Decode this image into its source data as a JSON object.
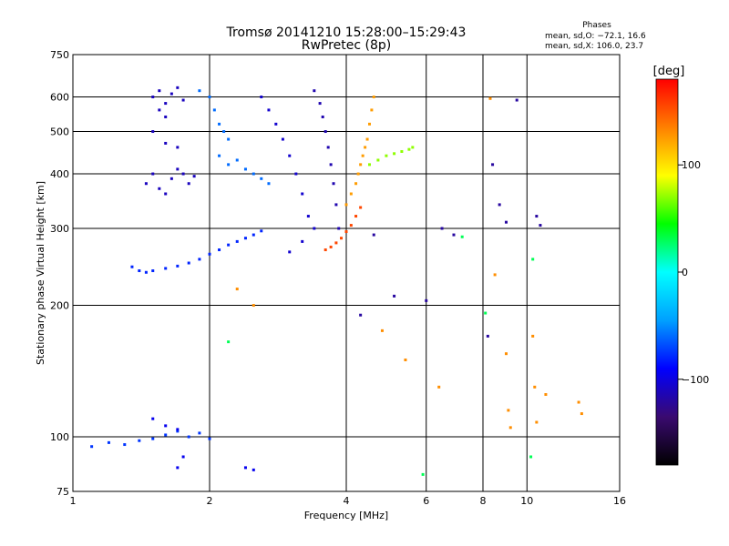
{
  "chart_data": {
    "type": "scatter",
    "title": "Tromsø 20141210 15:28:00–15:29:43",
    "subtitle": "RwPretec (8p)",
    "xlabel": "Frequency [MHz]",
    "ylabel": "Stationary phase Virtual Height [km]",
    "x_scale": "log2",
    "y_scale": "log",
    "xlim": [
      1,
      16
    ],
    "ylim": [
      75,
      750
    ],
    "x_ticks": [
      "1",
      "2",
      "4",
      "6",
      "8",
      "10",
      "16"
    ],
    "y_ticks": [
      "75",
      "100",
      "200",
      "300",
      "400",
      "500",
      "600",
      "750"
    ],
    "grid": true,
    "stats": {
      "title": "Phases",
      "line1": "mean, sd,O: −72.1, 16.6",
      "line2": "mean, sd,X: 106.0, 23.7"
    },
    "colorbar": {
      "label": "[deg]",
      "range": [
        -180,
        180
      ],
      "ticks": [
        "100",
        "0",
        "−100"
      ],
      "colors": [
        "#000000",
        "#3a0a70",
        "#0000ff",
        "#00a0ff",
        "#00ffff",
        "#00ff00",
        "#ffff00",
        "#ff8000",
        "#ff0000"
      ]
    },
    "series": [
      {
        "points": [
          [
            1.5,
            600
          ],
          [
            1.55,
            620
          ],
          [
            1.6,
            580
          ],
          [
            1.65,
            610
          ],
          [
            1.7,
            630
          ],
          [
            1.75,
            590
          ],
          [
            1.55,
            560
          ],
          [
            1.6,
            540
          ],
          [
            1.5,
            500
          ],
          [
            1.6,
            470
          ],
          [
            1.7,
            460
          ],
          [
            1.45,
            380
          ],
          [
            1.5,
            400
          ],
          [
            1.55,
            370
          ],
          [
            1.6,
            360
          ],
          [
            1.65,
            390
          ],
          [
            1.7,
            410
          ],
          [
            1.75,
            400
          ],
          [
            1.8,
            380
          ],
          [
            1.85,
            395
          ]
        ],
        "phase": -110
      },
      {
        "points": [
          [
            1.35,
            245
          ],
          [
            1.4,
            240
          ],
          [
            1.45,
            238
          ],
          [
            1.5,
            240
          ],
          [
            1.6,
            243
          ],
          [
            1.7,
            246
          ],
          [
            1.8,
            250
          ],
          [
            1.9,
            255
          ],
          [
            2.0,
            262
          ],
          [
            2.1,
            268
          ],
          [
            2.2,
            275
          ],
          [
            2.3,
            280
          ],
          [
            2.4,
            285
          ],
          [
            2.5,
            290
          ],
          [
            2.6,
            296
          ]
        ],
        "phase": -80
      },
      {
        "points": [
          [
            1.9,
            620
          ],
          [
            2.0,
            600
          ],
          [
            2.05,
            560
          ],
          [
            2.1,
            520
          ],
          [
            2.15,
            500
          ],
          [
            2.2,
            480
          ],
          [
            2.1,
            440
          ],
          [
            2.2,
            420
          ],
          [
            2.3,
            430
          ],
          [
            2.4,
            410
          ],
          [
            2.5,
            400
          ],
          [
            2.6,
            390
          ],
          [
            2.7,
            380
          ]
        ],
        "phase": -60
      },
      {
        "points": [
          [
            2.6,
            600
          ],
          [
            2.7,
            560
          ],
          [
            2.8,
            520
          ],
          [
            2.9,
            480
          ],
          [
            3.0,
            440
          ],
          [
            3.1,
            400
          ],
          [
            3.2,
            360
          ],
          [
            3.3,
            320
          ],
          [
            3.4,
            300
          ],
          [
            3.2,
            280
          ],
          [
            3.0,
            265
          ]
        ],
        "phase": -105
      },
      {
        "points": [
          [
            3.4,
            620
          ],
          [
            3.5,
            580
          ],
          [
            3.55,
            540
          ],
          [
            3.6,
            500
          ],
          [
            3.65,
            460
          ],
          [
            3.7,
            420
          ],
          [
            3.75,
            380
          ],
          [
            3.8,
            340
          ],
          [
            3.85,
            300
          ]
        ],
        "phase": -115
      },
      {
        "points": [
          [
            3.6,
            268
          ],
          [
            3.7,
            272
          ],
          [
            3.8,
            278
          ],
          [
            3.9,
            285
          ],
          [
            4.0,
            295
          ],
          [
            4.1,
            305
          ],
          [
            4.2,
            320
          ],
          [
            4.3,
            335
          ]
        ],
        "phase": 155
      },
      {
        "points": [
          [
            4.0,
            340
          ],
          [
            4.1,
            360
          ],
          [
            4.2,
            380
          ],
          [
            4.25,
            400
          ],
          [
            4.3,
            420
          ],
          [
            4.35,
            440
          ],
          [
            4.4,
            460
          ],
          [
            4.45,
            480
          ],
          [
            4.5,
            520
          ],
          [
            4.55,
            560
          ],
          [
            4.6,
            600
          ]
        ],
        "phase": 125
      },
      {
        "points": [
          [
            4.5,
            420
          ],
          [
            4.7,
            430
          ],
          [
            4.9,
            440
          ],
          [
            5.1,
            445
          ],
          [
            5.3,
            450
          ],
          [
            5.5,
            455
          ],
          [
            5.6,
            460
          ]
        ],
        "phase": 70
      },
      {
        "points": [
          [
            1.1,
            95
          ],
          [
            1.2,
            97
          ],
          [
            1.3,
            96
          ],
          [
            1.4,
            98
          ],
          [
            1.5,
            99
          ],
          [
            1.6,
            101
          ],
          [
            1.7,
            103
          ],
          [
            1.8,
            100
          ],
          [
            1.9,
            102
          ],
          [
            2.0,
            99
          ]
        ],
        "phase": -75
      },
      {
        "points": [
          [
            1.5,
            110
          ],
          [
            1.6,
            106
          ],
          [
            1.7,
            104
          ],
          [
            1.75,
            90
          ],
          [
            1.7,
            85
          ],
          [
            2.4,
            85
          ],
          [
            2.5,
            84
          ]
        ],
        "phase": -95
      },
      {
        "points": [
          [
            6.5,
            300
          ],
          [
            8.4,
            420
          ],
          [
            8.7,
            340
          ],
          [
            9.0,
            310
          ],
          [
            9.5,
            590
          ],
          [
            10.5,
            320
          ],
          [
            10.7,
            305
          ],
          [
            4.6,
            290
          ],
          [
            5.1,
            210
          ],
          [
            4.3,
            190
          ],
          [
            6.0,
            205
          ],
          [
            6.9,
            290
          ],
          [
            8.2,
            170
          ]
        ],
        "phase": -120
      },
      {
        "points": [
          [
            8.3,
            595
          ],
          [
            8.5,
            235
          ],
          [
            9.0,
            155
          ],
          [
            9.1,
            115
          ],
          [
            9.2,
            105
          ],
          [
            10.3,
            170
          ],
          [
            10.4,
            130
          ],
          [
            10.5,
            108
          ],
          [
            11.0,
            125
          ],
          [
            13.0,
            120
          ],
          [
            13.2,
            113
          ],
          [
            6.4,
            130
          ],
          [
            5.4,
            150
          ],
          [
            4.8,
            175
          ],
          [
            2.5,
            200
          ],
          [
            2.3,
            218
          ]
        ],
        "phase": 130
      },
      {
        "points": [
          [
            8.1,
            192
          ],
          [
            10.3,
            255
          ],
          [
            10.2,
            90
          ],
          [
            5.9,
            82
          ],
          [
            7.2,
            287
          ],
          [
            2.2,
            165
          ]
        ],
        "phase": 30
      }
    ]
  }
}
